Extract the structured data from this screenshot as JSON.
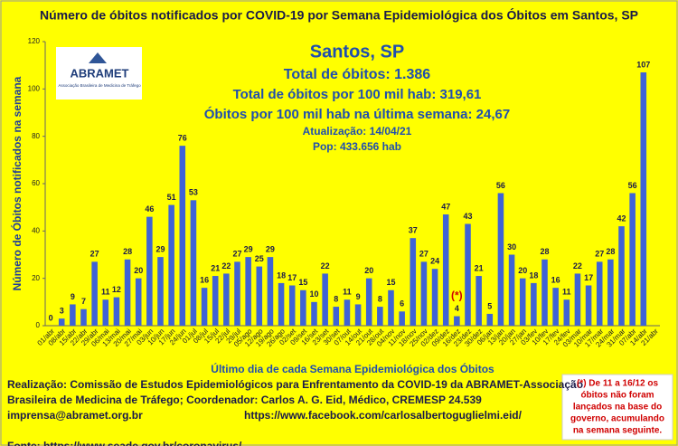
{
  "chart_data": {
    "type": "bar",
    "title": "Número de óbitos notificados por COVID-19 por Semana Epidemiológica dos Óbitos  em Santos, SP",
    "stats": [
      "Santos, SP",
      "Total de óbitos: 1.386",
      "Total de óbitos por 100 mil hab: 319,61",
      "Óbitos por 100 mil hab na última semana: 24,67",
      "Atualização: 14/04/21",
      "Pop: 433.656 hab"
    ],
    "logo": {
      "name": "ABRAMET",
      "subtitle": "Associação Brasileira de Medicina de Tráfego"
    },
    "xlabel": "Último dia de cada Semana Epidemiológica dos Óbitos",
    "ylabel": "Número de Óbitos notificados na semana",
    "annotation": "(*)",
    "categories": [
      "01/abr",
      "08/abr",
      "15/abr",
      "22/abr",
      "29/abr",
      "06/mai",
      "13/mai",
      "20/mai",
      "27/mai",
      "03/jun",
      "10/jun",
      "17/jun",
      "24/jun",
      "01/jul",
      "08/jul",
      "15/jul",
      "22/jul",
      "29/jul",
      "05/ago",
      "12/ago",
      "19/ago",
      "26/ago",
      "02/set",
      "09/set",
      "16/set",
      "23/set",
      "30/set",
      "07/out",
      "14/out",
      "21/out",
      "28/out",
      "04/nov",
      "11/nov",
      "18/nov",
      "25/nov",
      "02/dez",
      "09/dez",
      "16/dez",
      "23/dez",
      "30/dez",
      "06/jan",
      "13/jan",
      "20/jan",
      "27/jan",
      "03/fev",
      "10/fev",
      "17/fev",
      "24/fev",
      "03/mar",
      "10/mar",
      "17/mar",
      "24/mar",
      "31/mar",
      "07/abr",
      "14/abr",
      "21/abr"
    ],
    "values": [
      0,
      3,
      9,
      7,
      27,
      11,
      12,
      28,
      20,
      46,
      29,
      51,
      76,
      53,
      16,
      21,
      22,
      27,
      29,
      25,
      29,
      18,
      17,
      15,
      10,
      22,
      8,
      11,
      9,
      20,
      8,
      15,
      6,
      37,
      27,
      24,
      47,
      4,
      43,
      21,
      5,
      56,
      30,
      20,
      18,
      28,
      16,
      11,
      22,
      17,
      27,
      28,
      42,
      56,
      107,
      null
    ],
    "color": "#3f63d6",
    "ylim": [
      0,
      120
    ],
    "yticks": [
      0,
      20,
      40,
      60,
      80,
      100,
      120
    ],
    "footer": [
      "Realização: Comissão de Estudos Epidemiológicos para Enfrentamento da COVID-19 da ABRAMET-Associação",
      "Brasileira de Medicina de Tráfego; Coordenador: Carlos A. G. Eid, Médico, CREMESP 24.539",
      "imprensa@abramet.org.br",
      "https://www.facebook.com/carlosalbertoguglielmi.eid/",
      "Fonte: https://www.seade.gov.br/coronavirus/"
    ],
    "note": [
      "(*) De 11 a 16/12 os",
      "óbitos não foram",
      "lançados na base do",
      "governo, acumulando",
      "na semana seguinte."
    ]
  }
}
